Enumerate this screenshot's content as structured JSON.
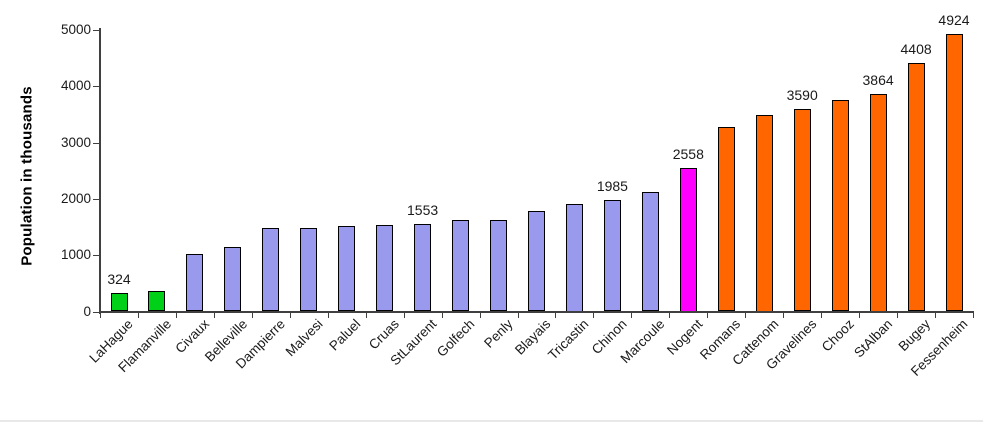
{
  "colors": {
    "background": "#ffffff",
    "axis": "#404040",
    "text": "#1a1a1a",
    "bar_border": "#000000",
    "bottom_rule": "#e8e8e8"
  },
  "chart_data": {
    "type": "bar",
    "title": "",
    "xlabel": "",
    "ylabel": "Population in thousands",
    "ylim": [
      0,
      5000
    ],
    "ytick_step": 1000,
    "yticks": [
      "0",
      "1000",
      "2000",
      "3000",
      "4000",
      "5000"
    ],
    "grid": false,
    "legend": false,
    "category_label_rotation_deg": -45,
    "bar_groups": [
      {
        "name": "green",
        "color": "#00D018"
      },
      {
        "name": "purple",
        "color": "#9999EE"
      },
      {
        "name": "magenta",
        "color": "#FF00FF"
      },
      {
        "name": "orange",
        "color": "#FF6600"
      }
    ],
    "bars": [
      {
        "category": "LaHague",
        "value": 324,
        "label": "324",
        "group": "green"
      },
      {
        "category": "Flamanville",
        "value": 370,
        "label": "",
        "group": "green"
      },
      {
        "category": "Civaux",
        "value": 1020,
        "label": "",
        "group": "purple"
      },
      {
        "category": "Belleville",
        "value": 1150,
        "label": "",
        "group": "purple"
      },
      {
        "category": "Dampierre",
        "value": 1480,
        "label": "",
        "group": "purple"
      },
      {
        "category": "Malvesi",
        "value": 1480,
        "label": "",
        "group": "purple"
      },
      {
        "category": "Paluel",
        "value": 1520,
        "label": "",
        "group": "purple"
      },
      {
        "category": "Cruas",
        "value": 1540,
        "label": "",
        "group": "purple"
      },
      {
        "category": "StLaurent",
        "value": 1553,
        "label": "1553",
        "group": "purple"
      },
      {
        "category": "Golfech",
        "value": 1620,
        "label": "",
        "group": "purple"
      },
      {
        "category": "Penly",
        "value": 1630,
        "label": "",
        "group": "purple"
      },
      {
        "category": "Blayais",
        "value": 1790,
        "label": "",
        "group": "purple"
      },
      {
        "category": "Tricastin",
        "value": 1910,
        "label": "",
        "group": "purple"
      },
      {
        "category": "Chinon",
        "value": 1985,
        "label": "1985",
        "group": "purple"
      },
      {
        "category": "Marcoule",
        "value": 2130,
        "label": "",
        "group": "purple"
      },
      {
        "category": "Nogent",
        "value": 2558,
        "label": "2558",
        "group": "magenta"
      },
      {
        "category": "Romans",
        "value": 3280,
        "label": "",
        "group": "orange"
      },
      {
        "category": "Cattenom",
        "value": 3490,
        "label": "",
        "group": "orange"
      },
      {
        "category": "Gravelines",
        "value": 3590,
        "label": "3590",
        "group": "orange"
      },
      {
        "category": "Chooz",
        "value": 3750,
        "label": "",
        "group": "orange"
      },
      {
        "category": "StAlban",
        "value": 3864,
        "label": "3864",
        "group": "orange"
      },
      {
        "category": "Bugey",
        "value": 4408,
        "label": "4408",
        "group": "orange"
      },
      {
        "category": "Fessenheim",
        "value": 4924,
        "label": "4924",
        "group": "orange"
      }
    ]
  }
}
